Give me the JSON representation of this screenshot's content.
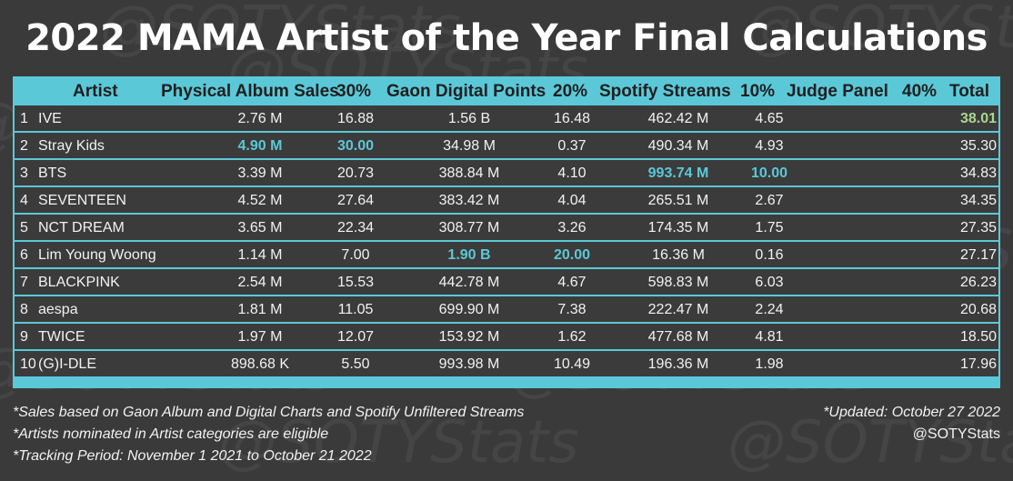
{
  "title": "2022 MAMA Artist of the Year Final Calculations",
  "watermark": "@SOTYStats",
  "colors": {
    "background": "#3a3a3a",
    "accent": "#5bc8d8",
    "total_highlight": "#a8d890",
    "text": "#f2f2f2"
  },
  "chart_data": {
    "type": "table",
    "title": "2022 MAMA Artist of the Year Final Calculations",
    "columns": [
      "Artist",
      "Physical Album Sales",
      "30%",
      "Gaon Digital Points",
      "20%",
      "Spotify Streams",
      "10%",
      "Judge Panel",
      "40%",
      "Total"
    ],
    "rows": [
      {
        "rank": "1",
        "artist": "IVE",
        "album_sales": "2.76 M",
        "album_pct": "16.88",
        "gaon": "1.56 B",
        "gaon_pct": "16.48",
        "spotify": "462.42 M",
        "spotify_pct": "4.65",
        "judge": "",
        "judge_pct": "",
        "total": "38.01"
      },
      {
        "rank": "2",
        "artist": "Stray Kids",
        "album_sales": "4.90 M",
        "album_pct": "30.00",
        "gaon": "34.98 M",
        "gaon_pct": "0.37",
        "spotify": "490.34 M",
        "spotify_pct": "4.93",
        "judge": "",
        "judge_pct": "",
        "total": "35.30"
      },
      {
        "rank": "3",
        "artist": "BTS",
        "album_sales": "3.39 M",
        "album_pct": "20.73",
        "gaon": "388.84 M",
        "gaon_pct": "4.10",
        "spotify": "993.74 M",
        "spotify_pct": "10.00",
        "judge": "",
        "judge_pct": "",
        "total": "34.83"
      },
      {
        "rank": "4",
        "artist": "SEVENTEEN",
        "album_sales": "4.52 M",
        "album_pct": "27.64",
        "gaon": "383.42 M",
        "gaon_pct": "4.04",
        "spotify": "265.51 M",
        "spotify_pct": "2.67",
        "judge": "",
        "judge_pct": "",
        "total": "34.35"
      },
      {
        "rank": "5",
        "artist": "NCT DREAM",
        "album_sales": "3.65 M",
        "album_pct": "22.34",
        "gaon": "308.77 M",
        "gaon_pct": "3.26",
        "spotify": "174.35 M",
        "spotify_pct": "1.75",
        "judge": "",
        "judge_pct": "",
        "total": "27.35"
      },
      {
        "rank": "6",
        "artist": "Lim Young Woong",
        "album_sales": "1.14 M",
        "album_pct": "7.00",
        "gaon": "1.90 B",
        "gaon_pct": "20.00",
        "spotify": "16.36 M",
        "spotify_pct": "0.16",
        "judge": "",
        "judge_pct": "",
        "total": "27.17"
      },
      {
        "rank": "7",
        "artist": "BLACKPINK",
        "album_sales": "2.54 M",
        "album_pct": "15.53",
        "gaon": "442.78 M",
        "gaon_pct": "4.67",
        "spotify": "598.83 M",
        "spotify_pct": "6.03",
        "judge": "",
        "judge_pct": "",
        "total": "26.23"
      },
      {
        "rank": "8",
        "artist": "aespa",
        "album_sales": "1.81 M",
        "album_pct": "11.05",
        "gaon": "699.90 M",
        "gaon_pct": "7.38",
        "spotify": "222.47 M",
        "spotify_pct": "2.24",
        "judge": "",
        "judge_pct": "",
        "total": "20.68"
      },
      {
        "rank": "9",
        "artist": "TWICE",
        "album_sales": "1.97 M",
        "album_pct": "12.07",
        "gaon": "153.92 M",
        "gaon_pct": "1.62",
        "spotify": "477.68 M",
        "spotify_pct": "4.81",
        "judge": "",
        "judge_pct": "",
        "total": "18.50"
      },
      {
        "rank": "10",
        "artist": "(G)I-DLE",
        "album_sales": "898.68 K",
        "album_pct": "5.50",
        "gaon": "993.98 M",
        "gaon_pct": "10.49",
        "spotify": "196.36 M",
        "spotify_pct": "1.98",
        "judge": "",
        "judge_pct": "",
        "total": "17.96"
      }
    ],
    "highlights": [
      {
        "row": 0,
        "field": "total",
        "style": "green"
      },
      {
        "row": 1,
        "field": "album_sales",
        "style": "accent"
      },
      {
        "row": 1,
        "field": "album_pct",
        "style": "accent"
      },
      {
        "row": 2,
        "field": "spotify",
        "style": "accent"
      },
      {
        "row": 2,
        "field": "spotify_pct",
        "style": "accent"
      },
      {
        "row": 5,
        "field": "gaon",
        "style": "accent"
      },
      {
        "row": 5,
        "field": "gaon_pct",
        "style": "accent"
      }
    ]
  },
  "notes": [
    "*Sales based on Gaon Album and Digital Charts and Spotify Unfiltered Streams",
    "*Artists nominated in Artist categories are eligible",
    "*Tracking Period: November 1 2021 to October 21 2022"
  ],
  "updated": "*Updated: October 27 2022",
  "credit": "@SOTYStats"
}
